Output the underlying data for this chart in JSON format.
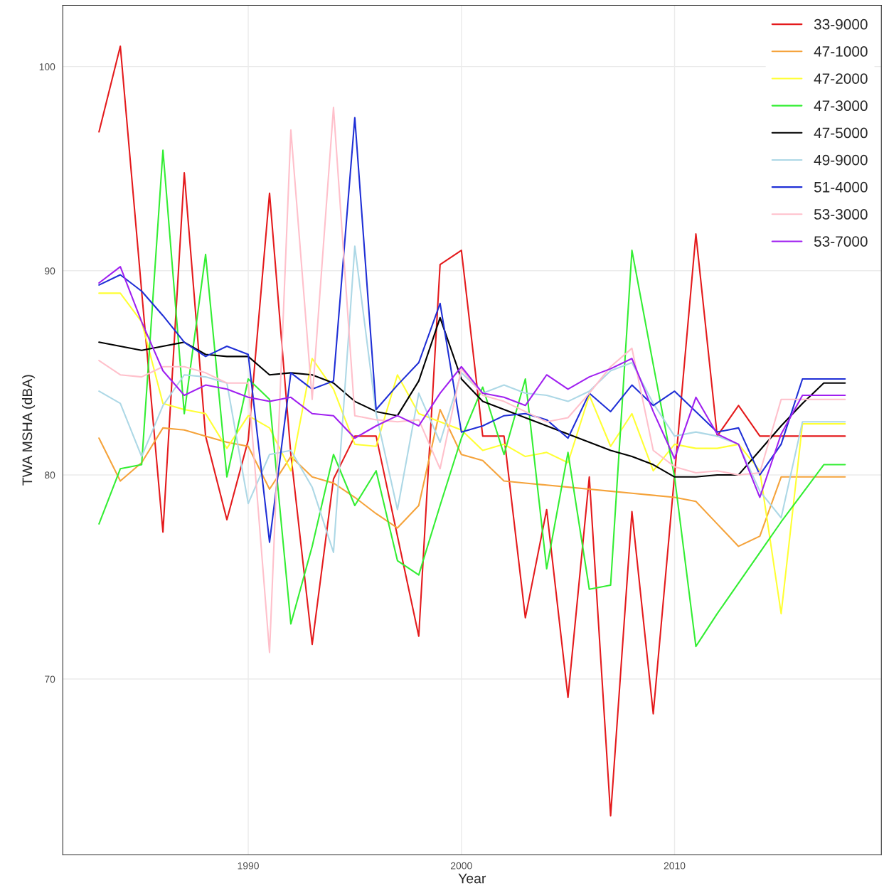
{
  "chart_data": {
    "type": "line",
    "xlabel": "Year",
    "ylabel": "TWA MSHA (dBA)",
    "x": [
      1983,
      1984,
      1985,
      1986,
      1987,
      1988,
      1989,
      1990,
      1991,
      1992,
      1993,
      1994,
      1995,
      1996,
      1997,
      1998,
      1999,
      2000,
      2001,
      2002,
      2003,
      2004,
      2005,
      2006,
      2007,
      2008,
      2009,
      2010,
      2011,
      2012,
      2013,
      2014,
      2015,
      2016,
      2017,
      2018
    ],
    "xlim": [
      1981.3,
      2019.7
    ],
    "xticks": [
      1990,
      2000,
      2010
    ],
    "ylim": [
      61.4,
      103.0
    ],
    "yticks": [
      70,
      80,
      90,
      100
    ],
    "grid": true,
    "legend": "top right",
    "line_style": "solid",
    "marker": "none",
    "series": [
      {
        "name": "33-9000",
        "color": "#e41a1c",
        "values": [
          96.8,
          101.0,
          89.0,
          77.2,
          94.8,
          81.9,
          77.8,
          81.7,
          93.8,
          81.0,
          71.7,
          79.8,
          81.9,
          81.9,
          77.0,
          72.1,
          90.3,
          91.0,
          81.9,
          81.9,
          73.0,
          78.3,
          69.1,
          79.9,
          63.3,
          78.2,
          68.3,
          80.0,
          91.8,
          81.9,
          83.4,
          81.9,
          81.9,
          81.9,
          81.9,
          81.9
        ]
      },
      {
        "name": "47-1000",
        "color": "#f5a33b",
        "values": [
          81.8,
          79.7,
          80.6,
          82.3,
          82.2,
          81.9,
          81.6,
          81.4,
          79.3,
          80.9,
          79.9,
          79.6,
          78.9,
          78.1,
          77.4,
          78.5,
          83.2,
          81.0,
          80.7,
          79.7,
          79.6,
          79.5,
          79.4,
          79.3,
          79.2,
          79.1,
          79.0,
          78.9,
          78.7,
          77.6,
          76.5,
          77.0,
          79.9,
          79.9,
          79.9,
          79.9
        ]
      },
      {
        "name": "47-2000",
        "color": "#ffff33",
        "values": [
          88.9,
          88.9,
          87.5,
          83.5,
          83.2,
          83.0,
          81.3,
          82.9,
          82.3,
          80.2,
          85.7,
          84.2,
          81.5,
          81.4,
          84.9,
          83.0,
          82.6,
          82.2,
          81.2,
          81.5,
          80.9,
          81.1,
          80.6,
          83.9,
          81.4,
          83.0,
          80.2,
          81.5,
          81.3,
          81.3,
          81.5,
          80.2,
          73.2,
          82.5,
          82.5,
          82.5
        ]
      },
      {
        "name": "47-3000",
        "color": "#33ee33",
        "values": [
          77.6,
          80.3,
          80.5,
          95.9,
          83.0,
          90.8,
          79.9,
          84.7,
          83.7,
          72.7,
          76.5,
          81.0,
          78.5,
          80.2,
          75.8,
          75.1,
          78.5,
          81.8,
          84.3,
          81.0,
          84.7,
          75.4,
          81.1,
          74.4,
          74.6,
          91.0,
          85.4,
          79.9,
          71.6,
          73.2,
          74.7,
          76.2,
          77.7,
          79.1,
          80.5,
          80.5
        ]
      },
      {
        "name": "47-5000",
        "color": "#000000",
        "values": [
          86.5,
          86.3,
          86.1,
          86.3,
          86.5,
          85.9,
          85.8,
          85.8,
          84.9,
          85.0,
          84.9,
          84.5,
          83.6,
          83.1,
          82.9,
          84.6,
          87.7,
          84.7,
          83.6,
          83.2,
          82.8,
          82.4,
          82.0,
          81.6,
          81.2,
          80.9,
          80.5,
          79.9,
          79.9,
          80.0,
          80.0,
          81.2,
          82.4,
          83.5,
          84.5,
          84.5
        ]
      },
      {
        "name": "49-9000",
        "color": "#add8e6",
        "values": [
          84.1,
          83.5,
          80.9,
          83.4,
          84.9,
          84.8,
          84.5,
          78.6,
          81.0,
          81.2,
          79.4,
          76.2,
          91.2,
          83.0,
          78.3,
          84.0,
          81.6,
          85.0,
          84.0,
          84.4,
          84.0,
          83.9,
          83.6,
          84.1,
          85.1,
          85.5,
          83.5,
          81.9,
          82.1,
          81.9,
          81.5,
          79.2,
          77.9,
          82.6,
          82.6,
          82.6
        ]
      },
      {
        "name": "51-4000",
        "color": "#1f2fd6",
        "values": [
          89.3,
          89.8,
          89.0,
          87.8,
          86.5,
          85.8,
          86.3,
          85.9,
          76.7,
          85.0,
          84.2,
          84.6,
          97.5,
          83.2,
          84.4,
          85.5,
          88.4,
          82.1,
          82.4,
          82.9,
          83.0,
          82.7,
          81.8,
          84.0,
          83.1,
          84.4,
          83.4,
          84.1,
          83.1,
          82.1,
          82.3,
          80.0,
          81.5,
          84.7,
          84.7,
          84.7
        ]
      },
      {
        "name": "53-3000",
        "color": "#ffc0cb",
        "values": [
          85.6,
          84.9,
          84.8,
          85.3,
          85.3,
          85.0,
          84.5,
          84.5,
          71.3,
          96.9,
          83.7,
          98.0,
          82.9,
          82.7,
          82.6,
          82.7,
          80.3,
          85.2,
          83.9,
          83.6,
          83.1,
          82.6,
          82.8,
          84.0,
          85.3,
          86.2,
          81.2,
          80.4,
          80.1,
          80.2,
          80.0,
          80.1,
          83.7,
          83.7,
          83.7,
          83.7
        ]
      },
      {
        "name": "53-7000",
        "color": "#a020f0",
        "values": [
          89.4,
          90.2,
          87.5,
          85.1,
          83.9,
          84.4,
          84.2,
          83.8,
          83.6,
          83.8,
          83.0,
          82.9,
          81.8,
          82.4,
          82.9,
          82.4,
          84.0,
          85.3,
          84.0,
          83.8,
          83.4,
          84.9,
          84.2,
          84.8,
          85.2,
          85.7,
          83.1,
          80.8,
          83.8,
          82.0,
          81.5,
          78.9,
          82.0,
          83.9,
          83.9,
          83.9
        ]
      }
    ]
  }
}
